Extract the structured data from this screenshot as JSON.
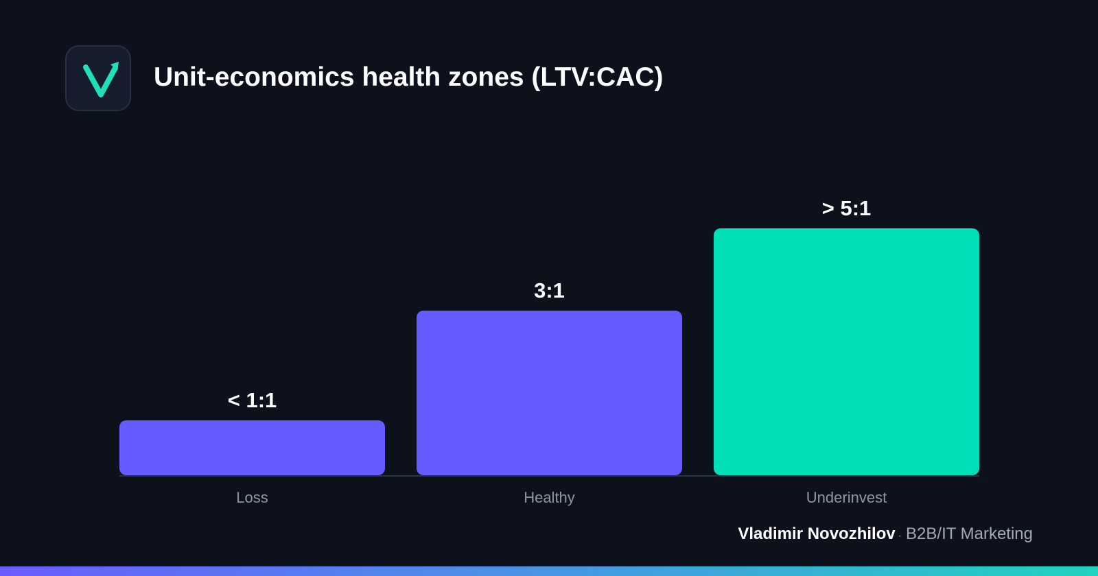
{
  "header": {
    "title": "Unit-economics health zones (LTV:CAC)",
    "logo_icon": "checkmark-arrow-icon"
  },
  "colors": {
    "background": "#0c111c",
    "primary_bar": "#645cff",
    "highlight_bar": "#00dfb7",
    "axis_line": "#2b3347",
    "tick_text": "#8f96a6",
    "logo_mark": "#1fe0b8"
  },
  "chart_data": {
    "type": "bar",
    "title": "Unit-economics health zones (LTV:CAC)",
    "categories": [
      "Loss",
      "Healthy",
      "Underinvest"
    ],
    "values": [
      1,
      3,
      4.5
    ],
    "value_labels": [
      "< 1:1",
      "3:1",
      "> 5:1"
    ],
    "bar_colors": [
      "#645cff",
      "#645cff",
      "#00dfb7"
    ],
    "ylim": [
      0,
      4.5
    ],
    "grid": false,
    "legend": "none",
    "xlabel": "",
    "ylabel": ""
  },
  "footer": {
    "author": "Vladimir Novozhilov",
    "separator": "·",
    "role": "B2B/IT Marketing"
  }
}
